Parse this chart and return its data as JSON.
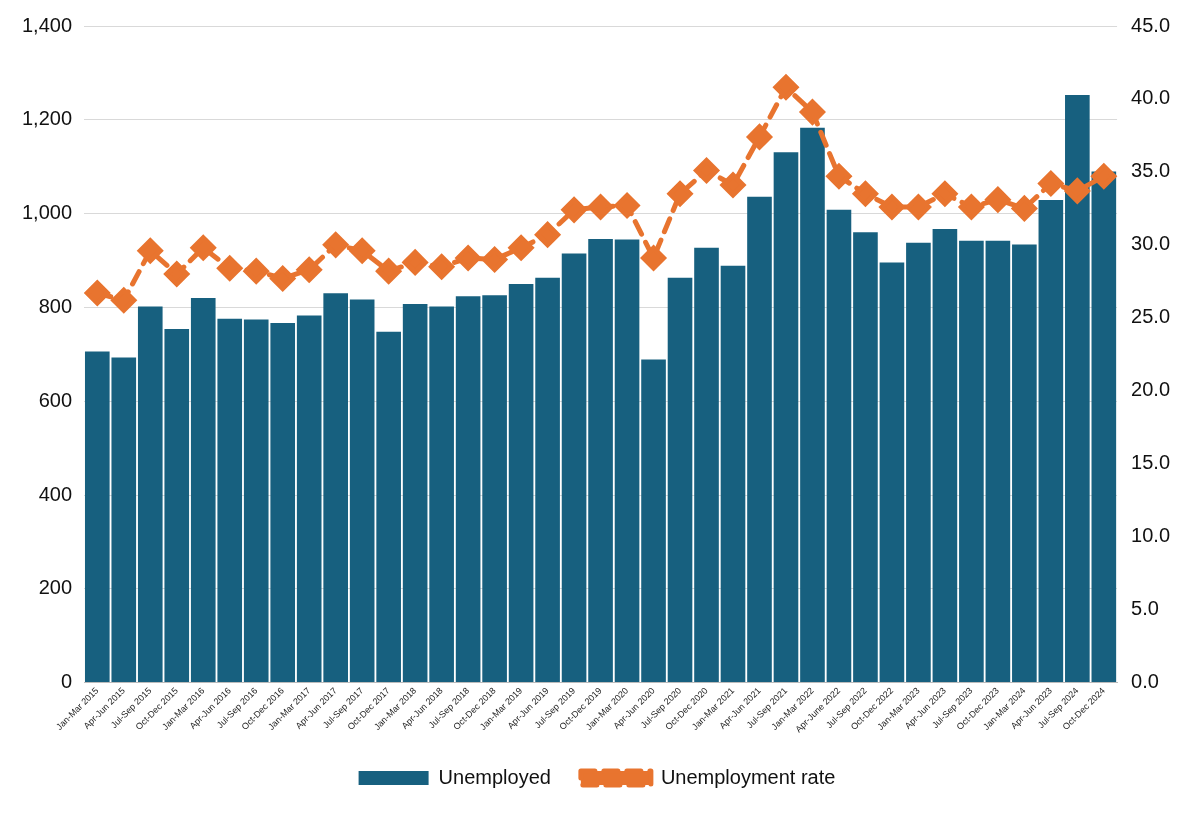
{
  "chart_data": {
    "type": "bar",
    "categories": [
      "Jan-Mar 2015",
      "Apr-Jun 2015",
      "Jul-Sep 2015",
      "Oct-Dec 2015",
      "Jan-Mar 2016",
      "Apr-Jun 2016",
      "Jul-Sep 2016",
      "Oct-Dec 2016",
      "Jan-Mar 2017",
      "Apr-Jun 2017",
      "Jul-Sep 2017",
      "Oct-Dec 2017",
      "Jan-Mar 2018",
      "Apr-Jun 2018",
      "Jul-Sep 2018",
      "Oct-Dec 2018",
      "Jan-Mar 2019",
      "Apr-Jun 2019",
      "Jul-Sep 2019",
      "Oct-Dec 2019",
      "Jan-Mar 2020",
      "Apr-Jun 2020",
      "Jul-Sep 2020",
      "Oct-Dec 2020",
      "Jan-Mar 2021",
      "Apr-Jun 2021",
      "Jul-Sep 2021",
      "Jan-Mar 2022",
      "Apr-June 2022",
      "Jul-Sep 2022",
      "Oct-Dec 2022",
      "Jan-Mar 2023",
      "Apr-Jun 2023",
      "Jul-Sep 2023",
      "Oct-Dec 2023",
      "Jan-Mar 2024",
      "Apr-Jun 2023",
      "Jul-Sep 2024",
      "Oct-Dec 2024"
    ],
    "series": [
      {
        "name": "Unemployed",
        "color": "#17607f",
        "values": [
          706,
          693,
          802,
          754,
          820,
          776,
          774,
          767,
          783,
          830,
          817,
          748,
          807,
          802,
          824,
          826,
          850,
          863,
          915,
          946,
          945,
          689,
          863,
          927,
          889,
          1036,
          1131,
          1183,
          1008,
          960,
          896,
          938,
          967,
          942,
          942,
          934,
          1029,
          1253,
          1090
        ]
      },
      {
        "name": "Unemployment rate",
        "type": "line",
        "axis": "y2",
        "color": "#e8742f",
        "marker": "diamond",
        "line_style": "dashed",
        "values": [
          26.7,
          26.2,
          29.6,
          28.0,
          29.8,
          28.4,
          28.2,
          27.7,
          28.3,
          30.0,
          29.6,
          28.2,
          28.8,
          28.5,
          29.1,
          29.0,
          29.8,
          30.7,
          32.4,
          32.6,
          32.7,
          29.1,
          33.5,
          35.1,
          34.1,
          37.4,
          40.8,
          39.1,
          34.7,
          33.5,
          32.6,
          32.6,
          33.5,
          32.6,
          33.1,
          32.5,
          34.2,
          33.7,
          34.7
        ]
      }
    ],
    "ylim": [
      0,
      1400
    ],
    "yticks": [
      0,
      200,
      400,
      600,
      800,
      {
        "value": 1000,
        "label": "1,000"
      },
      {
        "value": 1200,
        "label": "1,200"
      },
      {
        "value": 1400,
        "label": "1,400"
      }
    ],
    "y2lim": [
      0,
      45
    ],
    "y2ticks": [
      {
        "value": 0,
        "label": "0.0"
      },
      {
        "value": 5,
        "label": "5.0"
      },
      {
        "value": 10,
        "label": "10.0"
      },
      {
        "value": 15,
        "label": "15.0"
      },
      {
        "value": 20,
        "label": "20.0"
      },
      {
        "value": 25,
        "label": "25.0"
      },
      {
        "value": 30,
        "label": "30.0"
      },
      {
        "value": 35,
        "label": "35.0"
      },
      {
        "value": 40,
        "label": "40.0"
      },
      {
        "value": 45,
        "label": "45.0"
      }
    ],
    "grid": "y",
    "legend": "bottom"
  }
}
